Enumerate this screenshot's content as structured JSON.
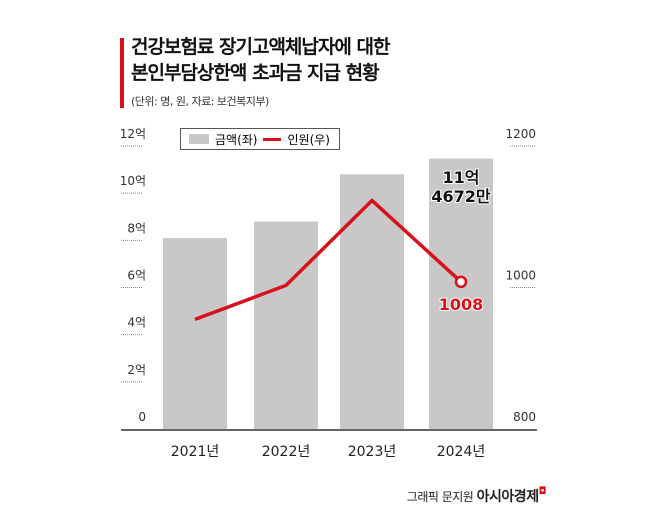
{
  "title_lines": [
    "건강보험료 장기고액체납자에 대한",
    "본인부담상한액 초과금 지급 현황"
  ],
  "subtitle": "(단위: 명, 원, 자료: 보건복지부)",
  "credit": {
    "prefix": "그래픽 문지원",
    "brand": "아시아경제"
  },
  "colors": {
    "bar": "#c8c8c8",
    "line": "#d7101a",
    "accent": "#d7101a"
  },
  "chart_data": {
    "type": "bar+line",
    "categories": [
      "2021년",
      "2022년",
      "2023년",
      "2024년"
    ],
    "series": [
      {
        "name": "금액(좌)",
        "type": "bar",
        "axis": "left",
        "unit": "억",
        "values": [
          8.1,
          8.8,
          10.8,
          11.4672
        ]
      },
      {
        "name": "인원(우)",
        "type": "line",
        "axis": "right",
        "unit": "명",
        "values": [
          955,
          1003,
          1123,
          1008
        ]
      }
    ],
    "left_axis": {
      "range": [
        0,
        12
      ],
      "ticks": [
        0,
        2,
        4,
        6,
        8,
        10,
        12
      ],
      "tick_labels": [
        "0",
        "2억",
        "4억",
        "6억",
        "8억",
        "10억",
        "12억"
      ]
    },
    "right_axis": {
      "range": [
        800,
        1200
      ],
      "ticks": [
        800,
        1000,
        1200
      ],
      "tick_labels": [
        "800",
        "1000",
        "1200"
      ]
    },
    "annotations": {
      "bar_label_lines": [
        "11억",
        "4672만"
      ],
      "line_label": "1008"
    },
    "legend_placement": "top-left",
    "grid": false
  }
}
